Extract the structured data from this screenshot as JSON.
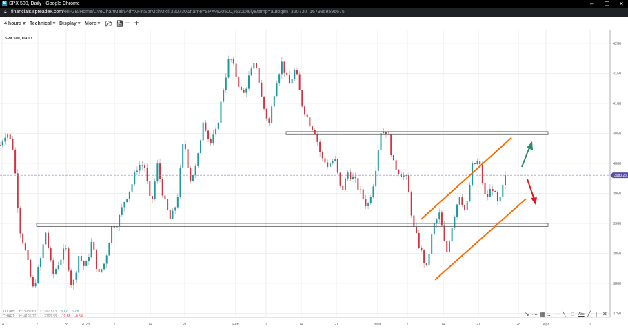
{
  "window": {
    "title": "SPX 500, Daily - Google Chrome",
    "url_host": "financials.spreadex.com",
    "url_path": "/en-GB/Home/LiveChartMain?id=XFinSprMchMktl|320730&name=SPX%20500,%20Daily&temp=autogen_320730_1679859596675"
  },
  "toolbar": {
    "interval": "4 hours ▾",
    "technical": "Technical ▾",
    "display": "Display ▾",
    "more": "More ▾"
  },
  "chart_data": {
    "type": "candlestick",
    "title": "SPX 500, DAILY",
    "ylim": [
      3750,
      4210
    ],
    "y_ticks": [
      4200,
      4150,
      4100,
      4050,
      4000,
      3950,
      3900,
      3850,
      3800,
      3750
    ],
    "x_ticks": [
      "14",
      "21",
      "28",
      "2023",
      "7",
      "14",
      "21",
      "Feb",
      "7",
      "14",
      "21",
      "Mar",
      "7",
      "14",
      "21",
      "28",
      "Apr",
      "7"
    ],
    "current_price": "3980.25",
    "price_path": [
      4031,
      4054,
      4025,
      3893,
      3847,
      3790,
      3830,
      3887,
      3813,
      3836,
      3859,
      3790,
      3847,
      3824,
      3870,
      3813,
      3836,
      3893,
      3904,
      3939,
      3962,
      3997,
      3997,
      3927,
      3997,
      3939,
      3904,
      3939,
      4042,
      3973,
      3997,
      4077,
      4031,
      4054,
      4123,
      4180,
      4146,
      4111,
      4146,
      4169,
      4100,
      4065,
      4134,
      4169,
      4129,
      4157,
      4100,
      4071,
      4054,
      4008,
      3997,
      4008,
      3950,
      3985,
      3973,
      3950,
      3927,
      3973,
      4054,
      4054,
      3997,
      3985,
      3973,
      3893,
      3859,
      3824,
      3893,
      3916,
      3847,
      3904,
      3950,
      3916,
      3997,
      4003,
      3939,
      3962,
      3927,
      3980
    ],
    "zones": [
      {
        "low": 4048,
        "high": 4053
      },
      {
        "low": 3895,
        "high": 3900
      }
    ],
    "channel": {
      "upper": [
        3907,
        4043
      ],
      "lower": [
        3806,
        3941
      ]
    },
    "colors": {
      "up": "#1a9aa0",
      "down": "#d9303f",
      "channel": "#ff6a00",
      "arrow_up": "#2e8b6e",
      "arrow_down": "#e8141a",
      "price_tag": "#5a4fa8"
    }
  },
  "stats": {
    "today_label": "TODAY:",
    "today_h": "H: 3980.63",
    "today_l": "L: 3970.13",
    "today_chg": "8.12",
    "today_pct": "0.2%",
    "chart_label": "CHART:",
    "chart_h": "H: 4196.77",
    "chart_l": "L: 3763.38",
    "chart_chg": "-19.88",
    "chart_pct": "-0.5%"
  }
}
